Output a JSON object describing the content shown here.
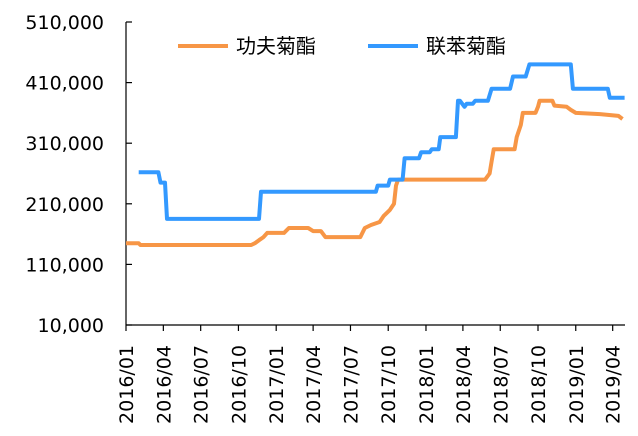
{
  "chart_data": {
    "type": "line",
    "title": "",
    "xlabel": "",
    "ylabel": "",
    "ylim": [
      10000,
      510000
    ],
    "yticks": [
      "510,000",
      "410,000",
      "310,000",
      "210,000",
      "110,000",
      "10,000"
    ],
    "ytick_values": [
      510000,
      410000,
      310000,
      210000,
      110000,
      10000
    ],
    "xticks": [
      "2016/01",
      "2016/04",
      "2016/07",
      "2016/10",
      "2017/01",
      "2017/04",
      "2017/07",
      "2017/10",
      "2018/01",
      "2018/04",
      "2018/07",
      "2018/10",
      "2019/01",
      "2019/04"
    ],
    "legend_position": "top",
    "grid": false,
    "series": [
      {
        "name": "功夫菊酯",
        "color": "#F79646",
        "points": [
          [
            "2016/01/01",
            145000
          ],
          [
            "2016/02/01",
            145000
          ],
          [
            "2016/02/05",
            142000
          ],
          [
            "2016/04/01",
            142000
          ],
          [
            "2016/07/01",
            142000
          ],
          [
            "2016/10/01",
            142000
          ],
          [
            "2016/11/01",
            142000
          ],
          [
            "2016/11/10",
            145000
          ],
          [
            "2016/11/20",
            150000
          ],
          [
            "2016/12/01",
            155000
          ],
          [
            "2016/12/10",
            162000
          ],
          [
            "2017/01/20",
            162000
          ],
          [
            "2017/02/01",
            170000
          ],
          [
            "2017/03/20",
            170000
          ],
          [
            "2017/04/01",
            165000
          ],
          [
            "2017/04/20",
            165000
          ],
          [
            "2017/05/01",
            155000
          ],
          [
            "2017/07/25",
            155000
          ],
          [
            "2017/08/05",
            170000
          ],
          [
            "2017/08/20",
            175000
          ],
          [
            "2017/09/10",
            180000
          ],
          [
            "2017/09/20",
            190000
          ],
          [
            "2017/10/05",
            200000
          ],
          [
            "2017/10/15",
            210000
          ],
          [
            "2017/10/20",
            240000
          ],
          [
            "2017/10/25",
            250000
          ],
          [
            "2018/05/25",
            250000
          ],
          [
            "2018/06/05",
            260000
          ],
          [
            "2018/06/10",
            280000
          ],
          [
            "2018/06/15",
            300000
          ],
          [
            "2018/08/05",
            300000
          ],
          [
            "2018/08/10",
            320000
          ],
          [
            "2018/08/20",
            340000
          ],
          [
            "2018/08/25",
            360000
          ],
          [
            "2018/09/25",
            360000
          ],
          [
            "2018/10/01",
            370000
          ],
          [
            "2018/10/05",
            380000
          ],
          [
            "2018/11/05",
            380000
          ],
          [
            "2018/11/10",
            372000
          ],
          [
            "2018/12/10",
            370000
          ],
          [
            "2018/12/20",
            365000
          ],
          [
            "2019/01/01",
            360000
          ],
          [
            "2019/03/01",
            358000
          ],
          [
            "2019/04/15",
            355000
          ],
          [
            "2019/04/25",
            350000
          ]
        ]
      },
      {
        "name": "联苯菊酯",
        "color": "#3399FF",
        "points": [
          [
            "2016/02/01",
            262000
          ],
          [
            "2016/03/20",
            262000
          ],
          [
            "2016/03/25",
            245000
          ],
          [
            "2016/04/05",
            245000
          ],
          [
            "2016/04/10",
            185000
          ],
          [
            "2016/07/01",
            185000
          ],
          [
            "2016/11/20",
            185000
          ],
          [
            "2016/11/25",
            230000
          ],
          [
            "2017/01/01",
            230000
          ],
          [
            "2017/07/01",
            230000
          ],
          [
            "2017/09/01",
            230000
          ],
          [
            "2017/09/05",
            240000
          ],
          [
            "2017/10/01",
            240000
          ],
          [
            "2017/10/05",
            250000
          ],
          [
            "2017/11/05",
            250000
          ],
          [
            "2017/11/10",
            285000
          ],
          [
            "2017/12/15",
            285000
          ],
          [
            "2017/12/20",
            295000
          ],
          [
            "2018/01/10",
            295000
          ],
          [
            "2018/01/15",
            300000
          ],
          [
            "2018/02/01",
            300000
          ],
          [
            "2018/02/05",
            320000
          ],
          [
            "2018/03/15",
            320000
          ],
          [
            "2018/03/20",
            380000
          ],
          [
            "2018/03/25",
            380000
          ],
          [
            "2018/04/05",
            370000
          ],
          [
            "2018/04/10",
            375000
          ],
          [
            "2018/04/25",
            375000
          ],
          [
            "2018/05/01",
            380000
          ],
          [
            "2018/06/01",
            380000
          ],
          [
            "2018/06/10",
            400000
          ],
          [
            "2018/07/25",
            400000
          ],
          [
            "2018/08/01",
            420000
          ],
          [
            "2018/09/01",
            420000
          ],
          [
            "2018/09/10",
            440000
          ],
          [
            "2018/12/20",
            440000
          ],
          [
            "2018/12/25",
            400000
          ],
          [
            "2019/03/20",
            400000
          ],
          [
            "2019/03/25",
            385000
          ],
          [
            "2019/04/30",
            385000
          ]
        ]
      }
    ]
  }
}
